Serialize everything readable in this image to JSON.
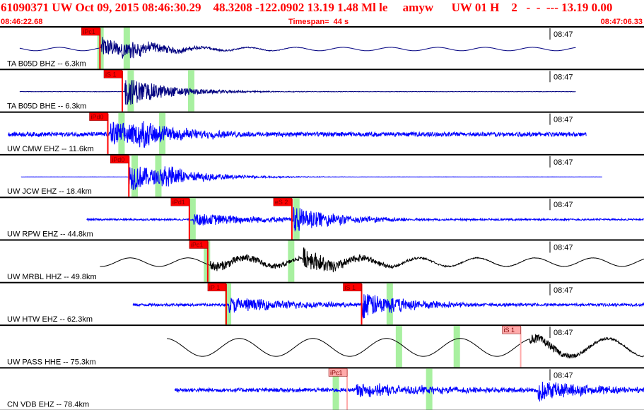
{
  "header": {
    "title": "61090371 UW Oct 09, 2015 08:46:30.29    48.3208 -122.0902 13.19 1.48 Ml le     amyw      UW 01 H    2   -  -  --- 13.19 0.00",
    "start_time": "08:46:22.68",
    "timespan": "Timespan=  44 s",
    "end_time": "08:47:06.33"
  },
  "colors": {
    "title_red": "#ff0000",
    "phase_pick": "#ff0000",
    "phase_pick_light": "#ffaaaa",
    "prediction_band": "#a8f0a0",
    "trace_blue": "#0000ff",
    "trace_black": "#000000",
    "trace_navy": "#000080",
    "minute_mark": "#000000"
  },
  "minute_label": "08:47",
  "chart_data": {
    "type": "line",
    "title": "61090371 UW Oct 09, 2015 08:46:30.29",
    "xlabel": "",
    "ylabel": "",
    "time_window": [
      "08:46:22.68",
      "08:47:06.33"
    ],
    "timespan_s": 44,
    "minute_tick": "08:47",
    "channels": [
      {
        "label": "TA B05D BHZ -- 6.3km",
        "color": "navy",
        "picks": [
          {
            "label": "iPc1",
            "t": 7.6,
            "light": false
          }
        ],
        "trace": {
          "start": 1.5,
          "end": 43.8,
          "wave": "sine",
          "base_amp": 0.08,
          "period": 3.6,
          "onset": 7.7,
          "peak_amp": 0.52,
          "decay": 2.8,
          "secondary": 9.3,
          "secondary_amp": 0.35
        }
      },
      {
        "label": "TA B05D BHE -- 6.3km",
        "color": "navy",
        "picks": [
          {
            "label": "iS 1",
            "t": 9.3,
            "light": false
          }
        ],
        "trace": {
          "start": 1.5,
          "end": 43.8,
          "wave": "flat",
          "base_amp": 0.01,
          "period": 1.0,
          "onset": 9.5,
          "peak_amp": 0.72,
          "decay": 3.2,
          "secondary": 9.5,
          "secondary_amp": 0.0
        }
      },
      {
        "label": "UW CMW EHZ -- 11.6km",
        "color": "blue",
        "picks": [
          {
            "label": "iPd0",
            "t": 8.2,
            "light": false
          }
        ],
        "trace": {
          "start": 0.6,
          "end": 44.6,
          "wave": "noise",
          "base_amp": 0.1,
          "period": 1.0,
          "onset": 8.4,
          "peak_amp": 0.62,
          "decay": 4.2,
          "secondary": 10.6,
          "secondary_amp": 0.4
        }
      },
      {
        "label": "UW JCW EHZ -- 18.4km",
        "color": "blue",
        "picks": [
          {
            "label": "iPd0",
            "t": 9.8,
            "light": false
          }
        ],
        "trace": {
          "start": 1.6,
          "end": 45.8,
          "wave": "flat",
          "base_amp": 0.005,
          "period": 1.0,
          "onset": 9.8,
          "peak_amp": 0.72,
          "decay": 2.6,
          "secondary": 12.1,
          "secondary_amp": 0.45
        }
      },
      {
        "label": "UW RPW EHZ -- 44.8km",
        "color": "blue",
        "picks": [
          {
            "label": "iPd1",
            "t": 14.4,
            "light": false
          },
          {
            "label": "eS 2",
            "t": 22.2,
            "light": false
          }
        ],
        "trace": {
          "start": 6.6,
          "end": 50.6,
          "wave": "noise",
          "base_amp": 0.04,
          "period": 1.0,
          "onset": 14.7,
          "peak_amp": 0.3,
          "decay": 6.0,
          "secondary": 22.3,
          "secondary_amp": 0.62
        }
      },
      {
        "label": "UW MRBL HHZ -- 49.8km",
        "color": "black",
        "picks": [
          {
            "label": "iPc1",
            "t": 15.8,
            "light": false
          }
        ],
        "trace": {
          "start": 7.6,
          "end": 51.8,
          "wave": "sine",
          "base_amp": 0.2,
          "period": 4.4,
          "onset": 16.0,
          "peak_amp": 0.24,
          "decay": 7.0,
          "secondary": 23.0,
          "secondary_amp": 0.5
        }
      },
      {
        "label": "UW HTW EHZ -- 62.3km",
        "color": "blue",
        "picks": [
          {
            "label": "iP 1",
            "t": 17.2,
            "light": false
          },
          {
            "label": "iS 1",
            "t": 27.5,
            "light": false
          }
        ],
        "trace": {
          "start": 10.1,
          "end": 54.1,
          "wave": "noise",
          "base_amp": 0.06,
          "period": 1.0,
          "onset": 17.4,
          "peak_amp": 0.35,
          "decay": 6.0,
          "secondary": 27.5,
          "secondary_amp": 0.66
        }
      },
      {
        "label": "UW PASS HHE -- 75.3km",
        "color": "black",
        "picks": [
          {
            "label": "iS 1",
            "t": 39.6,
            "light": true
          }
        ],
        "trace": {
          "start": 12.7,
          "end": 56.9,
          "wave": "sine",
          "base_amp": 0.42,
          "period": 5.6,
          "onset": 40.3,
          "peak_amp": 0.25,
          "decay": 4.0,
          "secondary": 40.3,
          "secondary_amp": 0.0
        }
      },
      {
        "label": "CN VDB EHZ -- 78.4km",
        "color": "blue",
        "picks": [
          {
            "label": "iPc1",
            "t": 26.4,
            "light": true
          }
        ],
        "trace": {
          "start": 13.3,
          "end": 57.4,
          "wave": "noise",
          "base_amp": 0.09,
          "period": 1.0,
          "onset": 27.1,
          "peak_amp": 0.3,
          "decay": 7.0,
          "secondary": 40.9,
          "secondary_amp": 0.55
        }
      }
    ],
    "predicted_arrivals": [
      [
        7.4,
        9.4
      ],
      [
        9.7,
        14.3
      ],
      [
        9.0,
        12.1
      ],
      [
        10.0,
        11.8
      ],
      [
        14.4,
        22.3
      ],
      [
        15.5,
        21.9
      ],
      [
        17.1,
        29.4
      ],
      [
        30.1,
        34.5
      ],
      [
        25.3,
        32.4
      ]
    ]
  }
}
